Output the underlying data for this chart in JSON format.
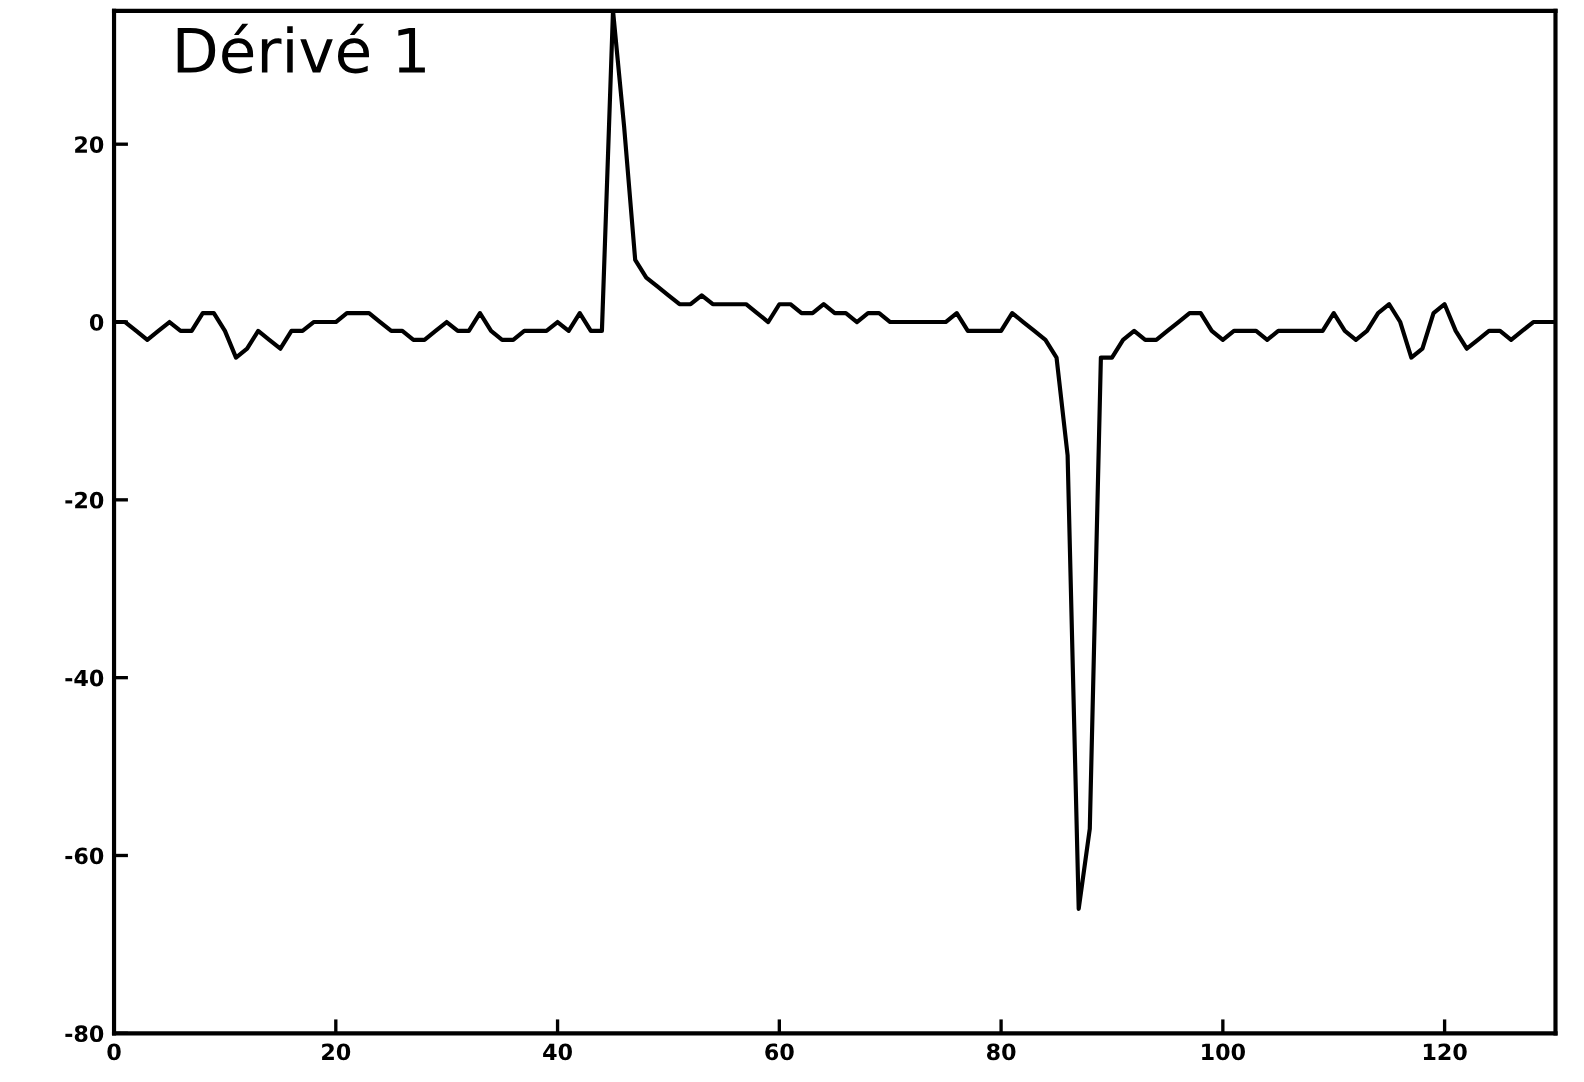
{
  "chart_data": {
    "type": "line",
    "title": "Dérivé 1",
    "x": [
      0,
      1,
      2,
      3,
      4,
      5,
      6,
      7,
      8,
      9,
      10,
      11,
      12,
      13,
      14,
      15,
      16,
      17,
      18,
      19,
      20,
      21,
      22,
      23,
      24,
      25,
      26,
      27,
      28,
      29,
      30,
      31,
      32,
      33,
      34,
      35,
      36,
      37,
      38,
      39,
      40,
      41,
      42,
      43,
      44,
      45,
      46,
      47,
      48,
      49,
      50,
      51,
      52,
      53,
      54,
      55,
      56,
      57,
      58,
      59,
      60,
      61,
      62,
      63,
      64,
      65,
      66,
      67,
      68,
      69,
      70,
      71,
      72,
      73,
      74,
      75,
      76,
      77,
      78,
      79,
      80,
      81,
      82,
      83,
      84,
      85,
      86,
      87,
      88,
      89,
      90,
      91,
      92,
      93,
      94,
      95,
      96,
      97,
      98,
      99,
      100,
      101,
      102,
      103,
      104,
      105,
      106,
      107,
      108,
      109,
      110,
      111,
      112,
      113,
      114,
      115,
      116,
      117,
      118,
      119,
      120,
      121,
      122,
      123,
      124,
      125,
      126,
      127,
      128,
      129,
      130
    ],
    "series": [
      {
        "color": "#000000",
        "values": [
          0,
          0,
          -1,
          -2,
          -1,
          0,
          -1,
          -1,
          1,
          1,
          -1,
          -4,
          -3,
          -1,
          -2,
          -3,
          -1,
          -1,
          0,
          0,
          0,
          1,
          1,
          1,
          0,
          -1,
          -1,
          -2,
          -2,
          -1,
          0,
          -1,
          -1,
          1,
          -1,
          -2,
          -2,
          -1,
          -1,
          -1,
          0,
          -1,
          1,
          -1,
          -1,
          35,
          22,
          7,
          5,
          4,
          3,
          2,
          2,
          3,
          2,
          2,
          2,
          2,
          1,
          0,
          2,
          2,
          1,
          1,
          2,
          1,
          1,
          0,
          1,
          1,
          0,
          0,
          0,
          0,
          0,
          0,
          1,
          -1,
          -1,
          -1,
          -1,
          1,
          0,
          -1,
          -2,
          -4,
          -15,
          -66,
          -57,
          -4,
          -4,
          -2,
          -1,
          -2,
          -2,
          -1,
          0,
          1,
          1,
          -1,
          -2,
          -1,
          -1,
          -1,
          -2,
          -1,
          -1,
          -1,
          -1,
          -1,
          1,
          -1,
          -2,
          -1,
          1,
          2,
          0,
          -4,
          -3,
          1,
          2,
          -1,
          -3,
          -2,
          -1,
          -1,
          -2,
          -1,
          0,
          0,
          0
        ]
      }
    ],
    "xlim": [
      0,
      130
    ],
    "ylim": [
      -80,
      35
    ],
    "xticks": [
      0,
      20,
      40,
      60,
      80,
      100,
      120
    ],
    "yticks": [
      -80,
      -60,
      -40,
      -20,
      0,
      20
    ],
    "grid": false,
    "marker": "none",
    "line_style": "solid"
  }
}
